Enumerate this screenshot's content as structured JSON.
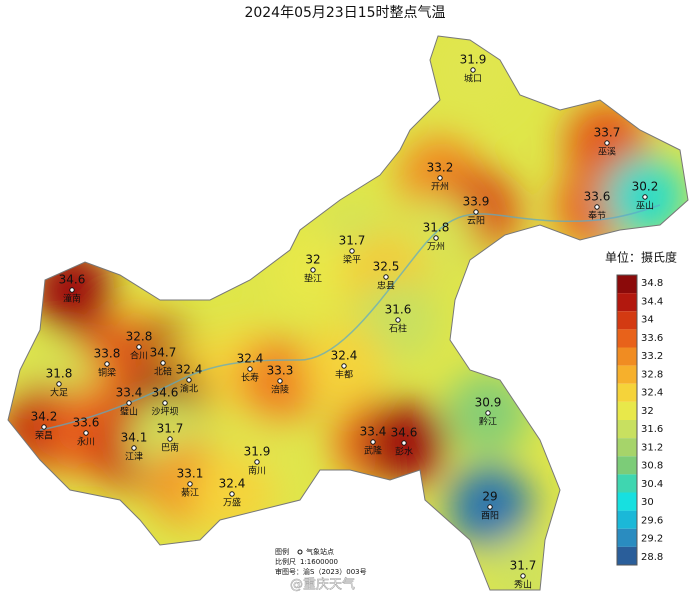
{
  "title": "2024年05月23日15时整点气温",
  "stations": [
    {
      "name": "城口",
      "value": 31.9
    },
    {
      "name": "巫溪",
      "value": 33.7
    },
    {
      "name": "开州",
      "value": 33.2
    },
    {
      "name": "云阳",
      "value": 33.9
    },
    {
      "name": "奉节",
      "value": 33.6
    },
    {
      "name": "巫山",
      "value": 30.2
    },
    {
      "name": "万州",
      "value": 31.8
    },
    {
      "name": "梁平",
      "value": 31.7
    },
    {
      "name": "垫江",
      "value": 32
    },
    {
      "name": "忠县",
      "value": 32.5
    },
    {
      "name": "石柱",
      "value": 31.6
    },
    {
      "name": "潼南",
      "value": 34.6
    },
    {
      "name": "合川",
      "value": 32.8
    },
    {
      "name": "北碚",
      "value": 34.7
    },
    {
      "name": "渝北",
      "value": 32.4
    },
    {
      "name": "铜梁",
      "value": 33.8
    },
    {
      "name": "大足",
      "value": 31.8
    },
    {
      "name": "长寿",
      "value": 32.4
    },
    {
      "name": "涪陵",
      "value": 33.3
    },
    {
      "name": "丰都",
      "value": 32.4
    },
    {
      "name": "璧山",
      "value": 33.4
    },
    {
      "name": "沙坪坝",
      "value": 34.6
    },
    {
      "name": "荣昌",
      "value": 34.2
    },
    {
      "name": "永川",
      "value": 33.6
    },
    {
      "name": "江津",
      "value": 34.1
    },
    {
      "name": "巴南",
      "value": 31.7
    },
    {
      "name": "黔江",
      "value": 30.9
    },
    {
      "name": "武隆",
      "value": 33.4
    },
    {
      "name": "彭水",
      "value": 34.6
    },
    {
      "name": "南川",
      "value": 31.9
    },
    {
      "name": "綦江",
      "value": 33.1
    },
    {
      "name": "万盛",
      "value": 32.4
    },
    {
      "name": "酉阳",
      "value": 29
    },
    {
      "name": "秀山",
      "value": 31.7
    }
  ],
  "legend": {
    "title": "单位：摄氏度",
    "ticks": [
      34.8,
      34.4,
      34,
      33.6,
      33.2,
      32.8,
      32.4,
      32,
      31.6,
      31.2,
      30.8,
      30.4,
      30,
      29.6,
      29.2,
      28.8
    ],
    "colors": [
      "#8b0a0a",
      "#b2180e",
      "#d33a12",
      "#e8621a",
      "#f08c22",
      "#f6b02c",
      "#f5d33a",
      "#e8e84a",
      "#c8e060",
      "#a6d46a",
      "#7ccc78",
      "#3fd6b0",
      "#17e0e0",
      "#1bb8d8",
      "#2a8cc0",
      "#2a5e9a"
    ]
  },
  "notes": {
    "legend_label": "图例",
    "station_label": "气象站点",
    "scale_label": "比例尺",
    "scale": "1:1600000",
    "approval": "审图号：渝S（2023）003号"
  },
  "watermark": "@重庆天气"
}
